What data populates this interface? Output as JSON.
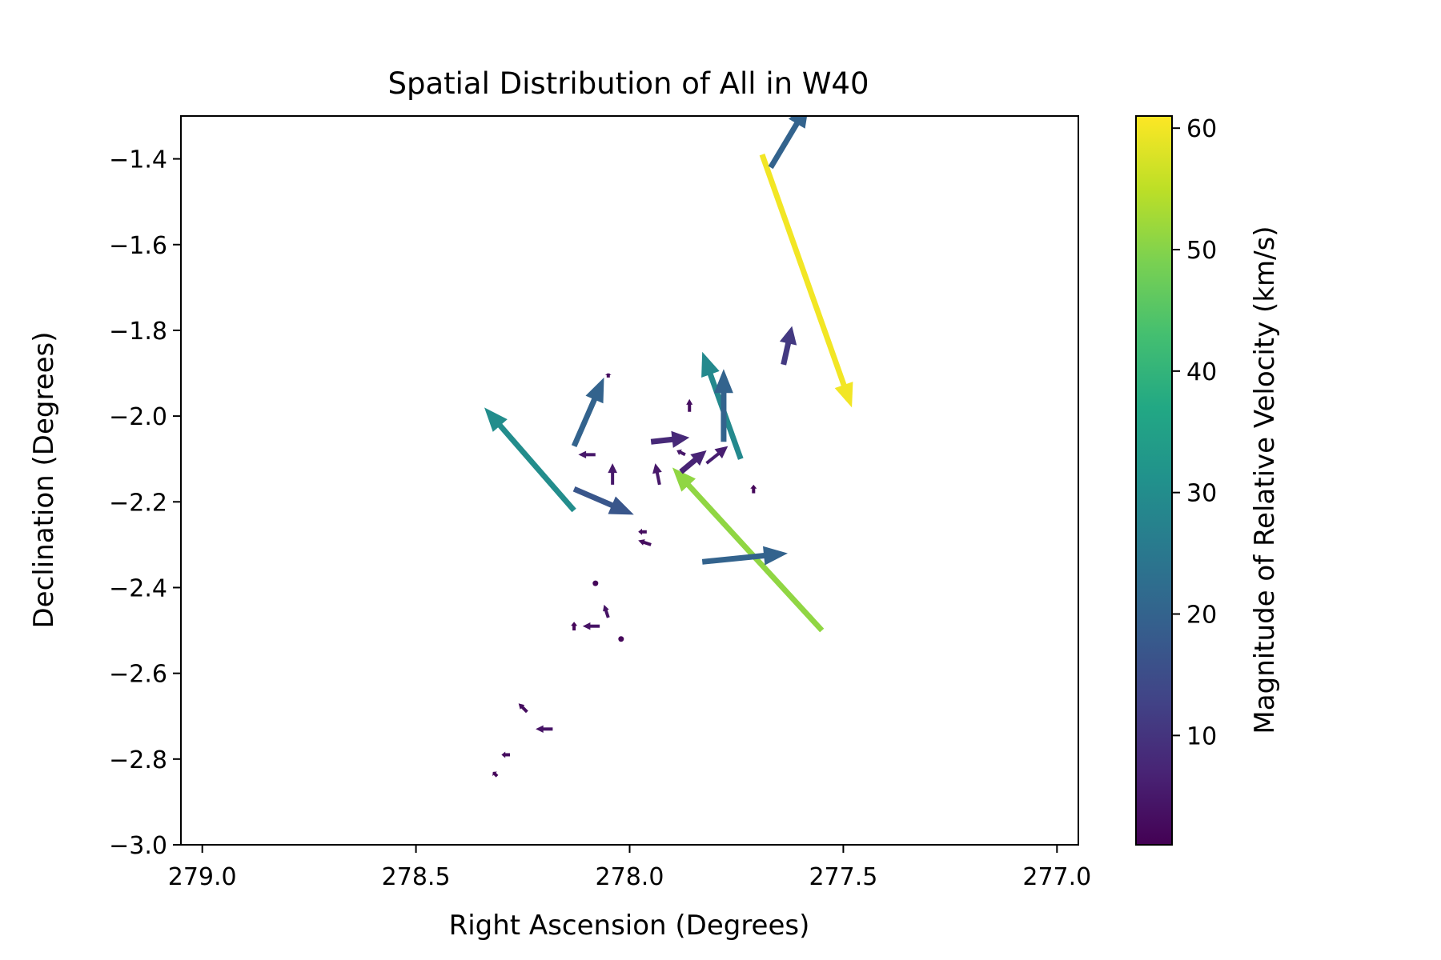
{
  "chart_data": {
    "type": "quiver",
    "title": "Spatial Distribution of All in W40",
    "xlabel": "Right Ascension (Degrees)",
    "ylabel": "Declination (Degrees)",
    "xlim": [
      279.05,
      276.95
    ],
    "ylim": [
      -3.0,
      -1.3
    ],
    "x_inverted": true,
    "xticks": [
      279.0,
      278.5,
      278.0,
      277.5,
      277.0
    ],
    "xtick_labels": [
      "279.0",
      "278.5",
      "278.0",
      "277.5",
      "277.0"
    ],
    "yticks": [
      -3.0,
      -2.8,
      -2.6,
      -2.4,
      -2.2,
      -2.0,
      -1.8,
      -1.6,
      -1.4
    ],
    "ytick_labels": [
      "−3.0",
      "−2.8",
      "−2.6",
      "−2.4",
      "−2.2",
      "−2.0",
      "−1.8",
      "−1.6",
      "−1.4"
    ],
    "grid": false,
    "colorbar": {
      "label": "Magnitude of Relative Velocity (km/s)",
      "colormap": "viridis",
      "range": [
        1,
        61
      ],
      "ticks": [
        10,
        20,
        30,
        40,
        50,
        60
      ],
      "tick_labels": [
        "10",
        "20",
        "30",
        "40",
        "50",
        "60"
      ]
    },
    "vectors": [
      {
        "ra": 277.69,
        "dec": -1.39,
        "dra": -0.21,
        "ddec": -0.59,
        "speed": 60
      },
      {
        "ra": 277.55,
        "dec": -2.5,
        "dra": 0.35,
        "ddec": 0.38,
        "speed": 51
      },
      {
        "ra": 278.13,
        "dec": -2.22,
        "dra": 0.21,
        "ddec": 0.24,
        "speed": 30
      },
      {
        "ra": 277.74,
        "dec": -2.1,
        "dra": 0.09,
        "ddec": 0.25,
        "speed": 29
      },
      {
        "ra": 277.67,
        "dec": -1.42,
        "dra": -0.09,
        "ddec": 0.15,
        "speed": 20
      },
      {
        "ra": 278.13,
        "dec": -2.07,
        "dra": -0.07,
        "ddec": 0.16,
        "speed": 20
      },
      {
        "ra": 277.78,
        "dec": -2.06,
        "dra": 0.0,
        "ddec": 0.17,
        "speed": 20
      },
      {
        "ra": 277.83,
        "dec": -2.34,
        "dra": -0.2,
        "ddec": 0.02,
        "speed": 20
      },
      {
        "ra": 278.13,
        "dec": -2.17,
        "dra": -0.14,
        "ddec": -0.06,
        "speed": 17
      },
      {
        "ra": 277.64,
        "dec": -1.88,
        "dra": -0.02,
        "ddec": 0.09,
        "speed": 11
      },
      {
        "ra": 277.95,
        "dec": -2.06,
        "dra": -0.09,
        "ddec": 0.01,
        "speed": 8
      },
      {
        "ra": 277.88,
        "dec": -2.13,
        "dra": -0.06,
        "ddec": 0.05,
        "speed": 7
      },
      {
        "ra": 277.82,
        "dec": -2.11,
        "dra": -0.05,
        "ddec": 0.04,
        "speed": 6
      },
      {
        "ra": 277.87,
        "dec": -2.09,
        "dra": 0.02,
        "ddec": 0.01,
        "speed": 5
      },
      {
        "ra": 278.08,
        "dec": -2.09,
        "dra": 0.04,
        "ddec": 0.0,
        "speed": 5
      },
      {
        "ra": 277.93,
        "dec": -2.16,
        "dra": 0.01,
        "ddec": 0.05,
        "speed": 5
      },
      {
        "ra": 278.04,
        "dec": -2.16,
        "dra": 0.0,
        "ddec": 0.05,
        "speed": 5
      },
      {
        "ra": 278.05,
        "dec": -1.91,
        "dra": 0.0,
        "ddec": 0.01,
        "speed": 3
      },
      {
        "ra": 277.86,
        "dec": -1.99,
        "dra": 0.0,
        "ddec": 0.03,
        "speed": 3
      },
      {
        "ra": 277.71,
        "dec": -2.18,
        "dra": 0.0,
        "ddec": 0.02,
        "speed": 2
      },
      {
        "ra": 277.96,
        "dec": -2.27,
        "dra": 0.02,
        "ddec": 0.0,
        "speed": 3
      },
      {
        "ra": 277.95,
        "dec": -2.3,
        "dra": 0.03,
        "ddec": 0.01,
        "speed": 3
      },
      {
        "ra": 278.08,
        "dec": -2.39,
        "dra": 0.0,
        "ddec": 0.0,
        "speed": 2
      },
      {
        "ra": 278.05,
        "dec": -2.47,
        "dra": 0.01,
        "ddec": 0.03,
        "speed": 4
      },
      {
        "ra": 278.13,
        "dec": -2.5,
        "dra": 0.0,
        "ddec": 0.02,
        "speed": 2
      },
      {
        "ra": 278.07,
        "dec": -2.49,
        "dra": 0.04,
        "ddec": 0.0,
        "speed": 4
      },
      {
        "ra": 278.02,
        "dec": -2.52,
        "dra": 0.0,
        "ddec": 0.0,
        "speed": 2
      },
      {
        "ra": 278.24,
        "dec": -2.69,
        "dra": 0.02,
        "ddec": 0.02,
        "speed": 3
      },
      {
        "ra": 278.18,
        "dec": -2.73,
        "dra": 0.04,
        "ddec": 0.0,
        "speed": 4
      },
      {
        "ra": 278.28,
        "dec": -2.79,
        "dra": 0.02,
        "ddec": 0.0,
        "speed": 3
      },
      {
        "ra": 278.31,
        "dec": -2.84,
        "dra": 0.01,
        "ddec": 0.01,
        "speed": 2
      }
    ]
  }
}
